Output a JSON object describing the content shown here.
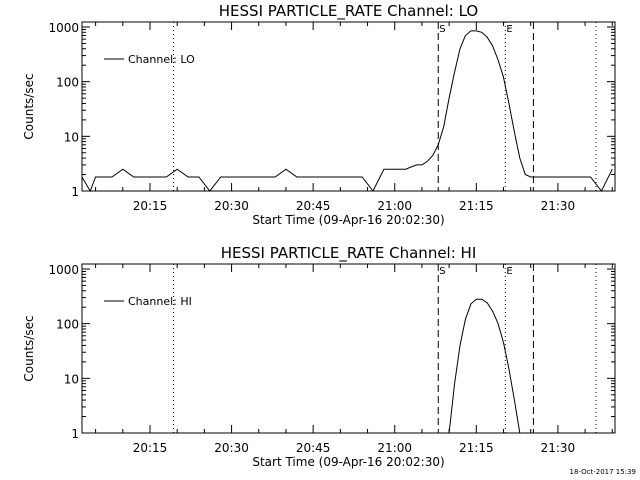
{
  "chart_data": [
    {
      "type": "line",
      "title": "HESSI PARTICLE_RATE Channel: LO",
      "xlabel": "Start Time (09-Apr-16 20:02:30)",
      "ylabel": "Counts/sec",
      "yscale": "log",
      "ylim": [
        1,
        1000
      ],
      "xlim": [
        "20:02:30",
        "21:40:30"
      ],
      "x_ticks": [
        "20:15",
        "20:30",
        "20:45",
        "21:00",
        "21:15",
        "21:30"
      ],
      "y_ticks": [
        "1",
        "10",
        "100",
        "1000"
      ],
      "legend": {
        "placement": "top-left"
      },
      "series": [
        {
          "name": "Channel: LO",
          "x": [
            "20:02:30",
            "20:04:00",
            "20:05:00",
            "20:06:00",
            "20:08:00",
            "20:10:00",
            "20:12:00",
            "20:14:00",
            "20:16:00",
            "20:18:00",
            "20:20:00",
            "20:22:00",
            "20:24:00",
            "20:26:00",
            "20:28:00",
            "20:30:00",
            "20:32:00",
            "20:34:00",
            "20:36:00",
            "20:38:00",
            "20:40:00",
            "20:42:00",
            "20:44:00",
            "20:46:00",
            "20:48:00",
            "20:50:00",
            "20:52:00",
            "20:54:00",
            "20:56:00",
            "20:58:00",
            "21:00:00",
            "21:02:00",
            "21:04:00",
            "21:05:00",
            "21:06:00",
            "21:07:00",
            "21:08:00",
            "21:09:00",
            "21:10:00",
            "21:11:00",
            "21:12:00",
            "21:13:00",
            "21:14:00",
            "21:15:00",
            "21:16:00",
            "21:17:00",
            "21:18:00",
            "21:19:00",
            "21:20:00",
            "21:21:00",
            "21:22:00",
            "21:23:00",
            "21:24:00",
            "21:25:00",
            "21:26:00",
            "21:28:00",
            "21:30:00",
            "21:32:00",
            "21:34:00",
            "21:36:00",
            "21:38:00",
            "21:40:00"
          ],
          "y": [
            1.8,
            1,
            1.8,
            1.8,
            1.8,
            2.5,
            1.8,
            1.8,
            1.8,
            1.8,
            2.5,
            1.8,
            1.8,
            1,
            1.8,
            1.8,
            1.8,
            1.8,
            1.8,
            1.8,
            2.5,
            1.8,
            1.8,
            1.8,
            1.8,
            1.8,
            1.8,
            1.8,
            1,
            2.5,
            2.5,
            2.5,
            3,
            3,
            3.5,
            4.5,
            7,
            15,
            50,
            150,
            400,
            700,
            850,
            850,
            800,
            650,
            450,
            250,
            120,
            40,
            12,
            4,
            2,
            1.8,
            1.8,
            1.8,
            1.8,
            1.8,
            1.8,
            1.8,
            1,
            2.5
          ]
        }
      ],
      "markers": [
        {
          "label": "S",
          "time": "21:08:00",
          "style": "dashed"
        },
        {
          "label": "E",
          "time": "21:20:20",
          "style": "dotted"
        },
        {
          "label": "",
          "time": "20:19:20",
          "style": "dotted"
        },
        {
          "label": "",
          "time": "21:25:30",
          "style": "dashed"
        },
        {
          "label": "",
          "time": "21:37:00",
          "style": "dotted"
        }
      ]
    },
    {
      "type": "line",
      "title": "HESSI PARTICLE_RATE Channel: HI",
      "xlabel": "Start Time (09-Apr-16 20:02:30)",
      "ylabel": "Counts/sec",
      "yscale": "log",
      "ylim": [
        1,
        1000
      ],
      "xlim": [
        "20:02:30",
        "21:40:30"
      ],
      "x_ticks": [
        "20:15",
        "20:30",
        "20:45",
        "21:00",
        "21:15",
        "21:30"
      ],
      "y_ticks": [
        "1",
        "10",
        "100",
        "1000"
      ],
      "legend": {
        "placement": "top-left"
      },
      "series": [
        {
          "name": "Channel: HI",
          "x": [
            "21:10:00",
            "21:11:00",
            "21:12:00",
            "21:13:00",
            "21:14:00",
            "21:15:00",
            "21:16:00",
            "21:17:00",
            "21:18:00",
            "21:19:00",
            "21:20:00",
            "21:21:00",
            "21:22:00",
            "21:23:00"
          ],
          "y": [
            1,
            8,
            40,
            120,
            230,
            280,
            280,
            240,
            170,
            100,
            45,
            15,
            4,
            1
          ]
        }
      ],
      "markers": [
        {
          "label": "S",
          "time": "21:08:00",
          "style": "dashed"
        },
        {
          "label": "E",
          "time": "21:20:20",
          "style": "dotted"
        },
        {
          "label": "",
          "time": "20:19:20",
          "style": "dotted"
        },
        {
          "label": "",
          "time": "21:25:30",
          "style": "dashed"
        },
        {
          "label": "",
          "time": "21:37:00",
          "style": "dotted"
        }
      ]
    }
  ],
  "footer": {
    "timestamp": "18-Oct-2017 15:39"
  }
}
